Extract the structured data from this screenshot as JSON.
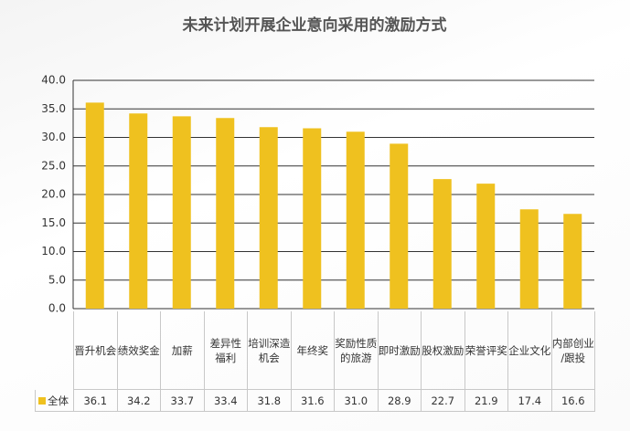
{
  "chart_data": {
    "type": "bar",
    "title": "未来计划开展企业意向采用的激励方式",
    "categories": [
      "晋升机会",
      "绩效奖金",
      "加薪",
      "差异性\n福利",
      "培训深造\n机会",
      "年终奖",
      "奖励性质\n的旅游",
      "即时激励",
      "股权激励",
      "荣誉评奖",
      "企业文化",
      "内部创业\n/跟投"
    ],
    "series": [
      {
        "name": "全体",
        "color": "#efc11f",
        "values": [
          36.1,
          34.2,
          33.7,
          33.4,
          31.8,
          31.6,
          31.0,
          28.9,
          22.7,
          21.9,
          17.4,
          16.6
        ],
        "value_labels": [
          "36.1",
          "34.2",
          "33.7",
          "33.4",
          "31.8",
          "31.6",
          "31.0",
          "28.9",
          "22.7",
          "21.9",
          "17.4",
          "16.6"
        ]
      }
    ],
    "ylim": [
      0,
      40
    ],
    "yticks": [
      {
        "value": 0,
        "label": "0.0"
      },
      {
        "value": 5,
        "label": "5.0"
      },
      {
        "value": 10,
        "label": "10.0"
      },
      {
        "value": 15,
        "label": "15.0"
      },
      {
        "value": 20,
        "label": "20.0"
      },
      {
        "value": 25,
        "label": "25.0"
      },
      {
        "value": 30,
        "label": "30.0"
      },
      {
        "value": 35,
        "label": "35.0"
      },
      {
        "value": 40,
        "label": "40.0"
      }
    ],
    "grid": true
  }
}
